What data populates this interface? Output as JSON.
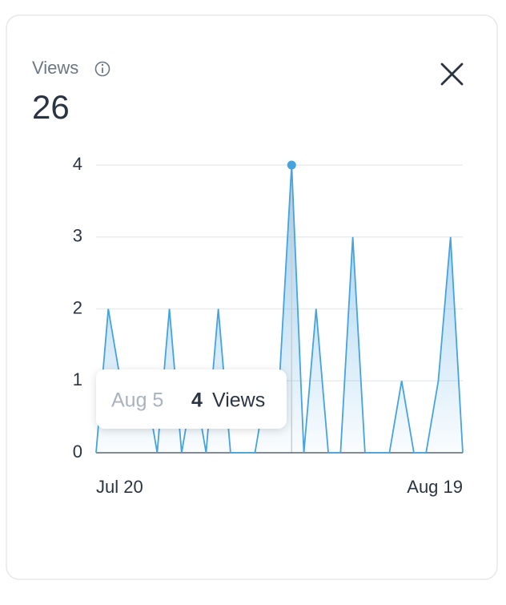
{
  "card": {
    "total": "26"
  },
  "chart_data": {
    "type": "area",
    "title": "Views",
    "color": "#45a3e0",
    "categories": [
      "Jul 20",
      null,
      null,
      null,
      null,
      null,
      null,
      null,
      null,
      null,
      null,
      null,
      null,
      null,
      null,
      null,
      null,
      null,
      null,
      null,
      null,
      null,
      null,
      null,
      null,
      null,
      null,
      null,
      null,
      null,
      "Aug 19"
    ],
    "values": [
      0,
      2,
      1,
      1,
      1,
      0,
      2,
      0,
      1,
      0,
      2,
      0,
      0,
      0,
      1,
      1,
      4,
      0,
      2,
      0,
      0,
      3,
      0,
      0,
      0,
      1,
      0,
      0,
      1,
      3,
      0
    ],
    "ylim": [
      0,
      4
    ],
    "yticks": [
      0,
      1,
      2,
      3,
      4
    ],
    "grid": true
  },
  "tooltip": {
    "date": "Aug 5"
  }
}
